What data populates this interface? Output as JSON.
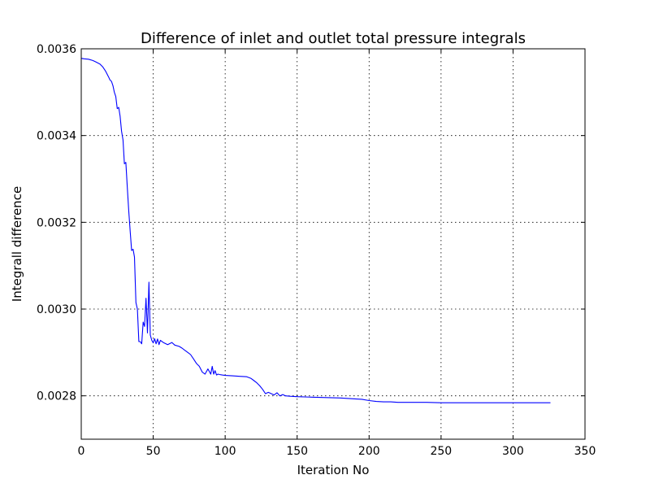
{
  "chart_data": {
    "type": "line",
    "title": "Difference of inlet and outlet total pressure integrals",
    "xlabel": "Iteration No",
    "ylabel": "Integrall difference",
    "xlim": [
      0,
      350
    ],
    "ylim": [
      0.0027,
      0.0036
    ],
    "xticks": [
      0,
      50,
      100,
      150,
      200,
      250,
      300,
      350
    ],
    "xtick_labels": [
      "0",
      "50",
      "100",
      "150",
      "200",
      "250",
      "300",
      "350"
    ],
    "yticks": [
      0.0028,
      0.003,
      0.0032,
      0.0034,
      0.0036
    ],
    "ytick_labels": [
      "0.0028",
      "0.0030",
      "0.0032",
      "0.0034",
      "0.0036"
    ],
    "grid": true,
    "line_color": "#0000ff",
    "series": [
      {
        "x": [
          0,
          2,
          5,
          8,
          10,
          13,
          15,
          17,
          19,
          20,
          21,
          22,
          23,
          24,
          25,
          26,
          27,
          28,
          29,
          30,
          31,
          32,
          33,
          34,
          35,
          36,
          37,
          38,
          39,
          40,
          41,
          42,
          43,
          44,
          45,
          46,
          47,
          48,
          49,
          50,
          51,
          52,
          53,
          54,
          55,
          57,
          60,
          63,
          65,
          68,
          70,
          72,
          74,
          76,
          78,
          80,
          82,
          84,
          86,
          88,
          90,
          91,
          92,
          93,
          94,
          95,
          96,
          98,
          100,
          105,
          110,
          115,
          118,
          120,
          122,
          124,
          126,
          128,
          130,
          132,
          134,
          136,
          138,
          140,
          142,
          145,
          150,
          160,
          170,
          180,
          190,
          195,
          200,
          205,
          210,
          215,
          220,
          225,
          230,
          240,
          250,
          260,
          270,
          280,
          290,
          300,
          310,
          320,
          326
        ],
        "values": [
          0.003578,
          0.003577,
          0.003576,
          0.003573,
          0.00357,
          0.003565,
          0.003558,
          0.003548,
          0.003535,
          0.003528,
          0.003525,
          0.003515,
          0.0035,
          0.00349,
          0.003462,
          0.003465,
          0.003445,
          0.00341,
          0.00339,
          0.003335,
          0.003338,
          0.00328,
          0.003225,
          0.00318,
          0.003135,
          0.003138,
          0.00312,
          0.003015,
          0.003,
          0.002925,
          0.002925,
          0.00292,
          0.00297,
          0.00296,
          0.003025,
          0.002945,
          0.003062,
          0.00294,
          0.002928,
          0.002922,
          0.002932,
          0.00292,
          0.002931,
          0.002918,
          0.002928,
          0.002923,
          0.002918,
          0.002923,
          0.002917,
          0.002914,
          0.00291,
          0.002905,
          0.0029,
          0.002895,
          0.002885,
          0.002875,
          0.002868,
          0.002855,
          0.00285,
          0.002862,
          0.00285,
          0.002868,
          0.00285,
          0.002858,
          0.002848,
          0.00285,
          0.002849,
          0.002848,
          0.002847,
          0.002846,
          0.002845,
          0.002844,
          0.00284,
          0.002835,
          0.00283,
          0.002823,
          0.002815,
          0.002805,
          0.002808,
          0.002805,
          0.002802,
          0.002807,
          0.0028,
          0.002803,
          0.0028,
          0.002799,
          0.002798,
          0.002797,
          0.002796,
          0.002795,
          0.002793,
          0.002792,
          0.002789,
          0.002787,
          0.002786,
          0.002786,
          0.002785,
          0.002785,
          0.002785,
          0.002785,
          0.002784,
          0.002784,
          0.002784,
          0.002784,
          0.002784,
          0.002784,
          0.002784,
          0.002784,
          0.002784
        ]
      }
    ]
  }
}
